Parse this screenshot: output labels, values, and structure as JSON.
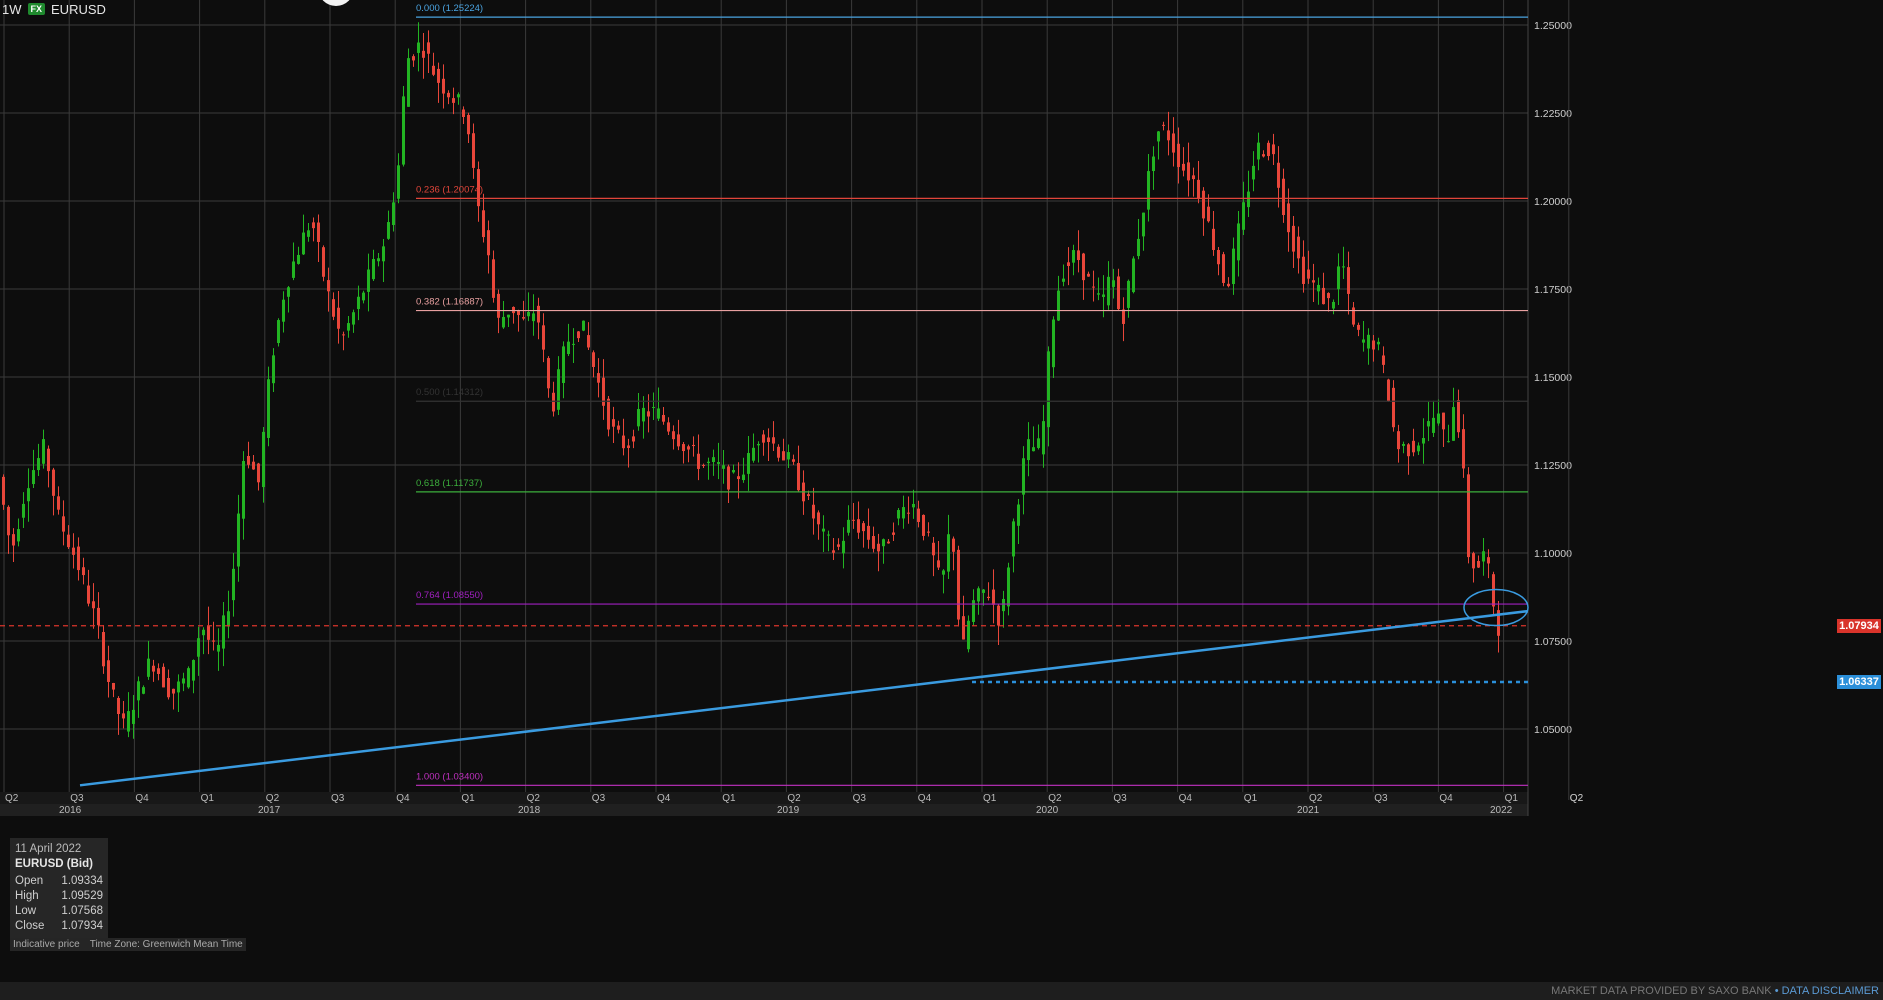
{
  "header": {
    "timeframe": "1W",
    "badge": "FX",
    "symbol": "EURUSD"
  },
  "infobox": {
    "date": "11 April 2022",
    "symbol": "EURUSD (Bid)",
    "rows": [
      {
        "label": "Open",
        "value": "1.09334"
      },
      {
        "label": "High",
        "value": "1.09529"
      },
      {
        "label": "Low",
        "value": "1.07568"
      },
      {
        "label": "Close",
        "value": "1.07934"
      }
    ]
  },
  "footnote": {
    "left": "Indicative price",
    "right": "Time Zone: Greenwich Mean Time"
  },
  "bottombar": {
    "provider": "MARKET DATA PROVIDED BY SAXO BANK",
    "sep": "•",
    "disclaimer": "DATA DISCLAIMER"
  },
  "price_tags": [
    {
      "label": "1.07934",
      "value": 1.07934,
      "color": "#d9342b"
    },
    {
      "label": "1.06337",
      "value": 1.06337,
      "color": "#2b8fd9"
    }
  ],
  "chart_data": {
    "type": "candlestick",
    "ylim": [
      1.03,
      1.26
    ],
    "y_ticks": [
      "1.05000",
      "1.07500",
      "1.10000",
      "1.12500",
      "1.15000",
      "1.17500",
      "1.20000",
      "1.22500",
      "1.25000"
    ],
    "quarter_labels": [
      "Q2",
      "Q3",
      "Q4",
      "Q1",
      "Q2",
      "Q3",
      "Q4",
      "Q1",
      "Q2",
      "Q3",
      "Q4",
      "Q1",
      "Q2",
      "Q3",
      "Q4",
      "Q1",
      "Q2",
      "Q3",
      "Q4",
      "Q1",
      "Q2",
      "Q3",
      "Q4",
      "Q1",
      "Q2"
    ],
    "year_labels": [
      "2016",
      "2017",
      "2018",
      "2019",
      "2020",
      "2021",
      "2022"
    ],
    "fib_levels": [
      {
        "label": "0.000 (1.25224)",
        "value": 1.25224,
        "color": "#4aa3e0"
      },
      {
        "label": "0.236 (1.20074)",
        "value": 1.20074,
        "color": "#e0453a"
      },
      {
        "label": "0.382 (1.16887)",
        "value": 1.16887,
        "color": "#e8a0a0"
      },
      {
        "label": "0.500 (1.14312)",
        "value": 1.14312,
        "color": "#333333"
      },
      {
        "label": "0.618 (1.11737)",
        "value": 1.11737,
        "color": "#3cae3c"
      },
      {
        "label": "0.764 (1.08550)",
        "value": 1.0855,
        "color": "#a020c0"
      },
      {
        "label": "1.000 (1.03400)",
        "value": 1.034,
        "color": "#c030c0"
      }
    ],
    "ref_lines": [
      {
        "value": 1.07934,
        "color": "#d9342b",
        "style": "dashed"
      },
      {
        "value": 1.06337,
        "color": "#2b8fd9",
        "style": "dotted"
      }
    ],
    "trendline": {
      "from": 1.034,
      "to": 1.0835,
      "color": "#3a9be0"
    },
    "anchors": [
      [
        0,
        1.125
      ],
      [
        15,
        1.1
      ],
      [
        30,
        1.12
      ],
      [
        48,
        1.13
      ],
      [
        62,
        1.11
      ],
      [
        80,
        1.098
      ],
      [
        100,
        1.08
      ],
      [
        115,
        1.06
      ],
      [
        128,
        1.05
      ],
      [
        140,
        1.06
      ],
      [
        155,
        1.07
      ],
      [
        175,
        1.06
      ],
      [
        192,
        1.065
      ],
      [
        205,
        1.08
      ],
      [
        220,
        1.07
      ],
      [
        235,
        1.09
      ],
      [
        248,
        1.13
      ],
      [
        262,
        1.12
      ],
      [
        275,
        1.155
      ],
      [
        288,
        1.175
      ],
      [
        300,
        1.185
      ],
      [
        315,
        1.195
      ],
      [
        330,
        1.175
      ],
      [
        345,
        1.16
      ],
      [
        360,
        1.17
      ],
      [
        375,
        1.18
      ],
      [
        390,
        1.19
      ],
      [
        402,
        1.21
      ],
      [
        410,
        1.24
      ],
      [
        425,
        1.245
      ],
      [
        440,
        1.235
      ],
      [
        455,
        1.23
      ],
      [
        470,
        1.225
      ],
      [
        480,
        1.2
      ],
      [
        492,
        1.185
      ],
      [
        500,
        1.165
      ],
      [
        515,
        1.17
      ],
      [
        528,
        1.165
      ],
      [
        540,
        1.17
      ],
      [
        555,
        1.14
      ],
      [
        570,
        1.16
      ],
      [
        585,
        1.165
      ],
      [
        600,
        1.15
      ],
      [
        615,
        1.135
      ],
      [
        630,
        1.13
      ],
      [
        645,
        1.14
      ],
      [
        660,
        1.14
      ],
      [
        675,
        1.135
      ],
      [
        690,
        1.13
      ],
      [
        705,
        1.125
      ],
      [
        720,
        1.125
      ],
      [
        735,
        1.12
      ],
      [
        750,
        1.125
      ],
      [
        765,
        1.135
      ],
      [
        780,
        1.13
      ],
      [
        795,
        1.125
      ],
      [
        810,
        1.115
      ],
      [
        825,
        1.105
      ],
      [
        840,
        1.1
      ],
      [
        855,
        1.11
      ],
      [
        870,
        1.105
      ],
      [
        885,
        1.1
      ],
      [
        900,
        1.11
      ],
      [
        915,
        1.115
      ],
      [
        930,
        1.105
      ],
      [
        945,
        1.09
      ],
      [
        955,
        1.11
      ],
      [
        965,
        1.07
      ],
      [
        975,
        1.085
      ],
      [
        990,
        1.09
      ],
      [
        1005,
        1.08
      ],
      [
        1015,
        1.105
      ],
      [
        1030,
        1.13
      ],
      [
        1045,
        1.13
      ],
      [
        1055,
        1.165
      ],
      [
        1065,
        1.18
      ],
      [
        1080,
        1.185
      ],
      [
        1095,
        1.175
      ],
      [
        1105,
        1.17
      ],
      [
        1115,
        1.18
      ],
      [
        1125,
        1.165
      ],
      [
        1135,
        1.18
      ],
      [
        1148,
        1.2
      ],
      [
        1160,
        1.22
      ],
      [
        1170,
        1.22
      ],
      [
        1185,
        1.21
      ],
      [
        1200,
        1.205
      ],
      [
        1215,
        1.19
      ],
      [
        1230,
        1.175
      ],
      [
        1245,
        1.195
      ],
      [
        1260,
        1.215
      ],
      [
        1275,
        1.215
      ],
      [
        1290,
        1.195
      ],
      [
        1305,
        1.18
      ],
      [
        1320,
        1.175
      ],
      [
        1335,
        1.17
      ],
      [
        1345,
        1.185
      ],
      [
        1355,
        1.165
      ],
      [
        1365,
        1.16
      ],
      [
        1380,
        1.16
      ],
      [
        1392,
        1.145
      ],
      [
        1400,
        1.13
      ],
      [
        1415,
        1.13
      ],
      [
        1430,
        1.135
      ],
      [
        1440,
        1.14
      ],
      [
        1450,
        1.13
      ],
      [
        1458,
        1.145
      ],
      [
        1465,
        1.13
      ],
      [
        1472,
        1.1
      ],
      [
        1480,
        1.095
      ],
      [
        1488,
        1.1
      ],
      [
        1495,
        1.09
      ],
      [
        1500,
        1.0793
      ]
    ]
  }
}
